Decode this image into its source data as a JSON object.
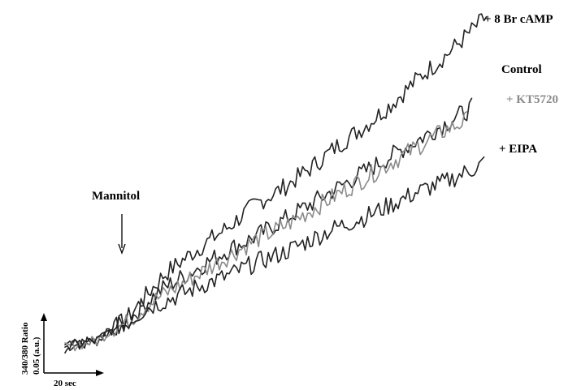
{
  "chart_data": {
    "type": "line",
    "title": "",
    "xlabel": "",
    "ylabel": "",
    "stimulus_label": "Mannitol",
    "scale_bar": {
      "x_label": "20 sec",
      "y_label_line1": "340/380 Ratio",
      "y_label_line2": "0.05 (a.u.)"
    },
    "series": [
      {
        "name": "+ 8 Br cAMP",
        "color": "#222222",
        "points": [
          [
            0,
            0
          ],
          [
            12,
            0.02
          ],
          [
            18,
            0.06
          ],
          [
            22,
            0.08
          ],
          [
            30,
            0.16
          ],
          [
            36,
            0.22
          ],
          [
            42,
            0.26
          ],
          [
            50,
            0.31
          ],
          [
            60,
            0.37
          ],
          [
            70,
            0.44
          ],
          [
            80,
            0.49
          ],
          [
            90,
            0.55
          ],
          [
            100,
            0.62
          ],
          [
            110,
            0.68
          ],
          [
            120,
            0.75
          ],
          [
            130,
            0.83
          ],
          [
            140,
            0.9
          ],
          [
            150,
            0.98
          ],
          [
            155,
            1.02
          ]
        ]
      },
      {
        "name": "Control",
        "color": "#222222",
        "points": [
          [
            0,
            0
          ],
          [
            12,
            0.02
          ],
          [
            18,
            0.06
          ],
          [
            22,
            0.07
          ],
          [
            30,
            0.14
          ],
          [
            36,
            0.18
          ],
          [
            42,
            0.21
          ],
          [
            50,
            0.25
          ],
          [
            60,
            0.3
          ],
          [
            70,
            0.34
          ],
          [
            80,
            0.39
          ],
          [
            90,
            0.44
          ],
          [
            100,
            0.49
          ],
          [
            110,
            0.54
          ],
          [
            120,
            0.59
          ],
          [
            130,
            0.64
          ],
          [
            140,
            0.69
          ],
          [
            150,
            0.74
          ]
        ]
      },
      {
        "name": "+ KT5720",
        "color": "#8a8a8a",
        "points": [
          [
            0,
            0
          ],
          [
            12,
            0.02
          ],
          [
            18,
            0.06
          ],
          [
            22,
            0.07
          ],
          [
            30,
            0.13
          ],
          [
            36,
            0.16
          ],
          [
            42,
            0.19
          ],
          [
            50,
            0.23
          ],
          [
            60,
            0.28
          ],
          [
            70,
            0.33
          ],
          [
            80,
            0.37
          ],
          [
            90,
            0.42
          ],
          [
            100,
            0.47
          ],
          [
            110,
            0.52
          ],
          [
            120,
            0.57
          ],
          [
            130,
            0.62
          ],
          [
            140,
            0.67
          ],
          [
            148,
            0.7
          ]
        ]
      },
      {
        "name": "+ EIPA",
        "color": "#222222",
        "points": [
          [
            0,
            0
          ],
          [
            12,
            0.02
          ],
          [
            18,
            0.06
          ],
          [
            22,
            0.07
          ],
          [
            30,
            0.12
          ],
          [
            36,
            0.14
          ],
          [
            42,
            0.16
          ],
          [
            50,
            0.19
          ],
          [
            60,
            0.22
          ],
          [
            70,
            0.26
          ],
          [
            80,
            0.29
          ],
          [
            90,
            0.33
          ],
          [
            100,
            0.37
          ],
          [
            110,
            0.4
          ],
          [
            120,
            0.44
          ],
          [
            130,
            0.48
          ],
          [
            140,
            0.51
          ],
          [
            150,
            0.55
          ],
          [
            154,
            0.57
          ]
        ]
      }
    ]
  }
}
